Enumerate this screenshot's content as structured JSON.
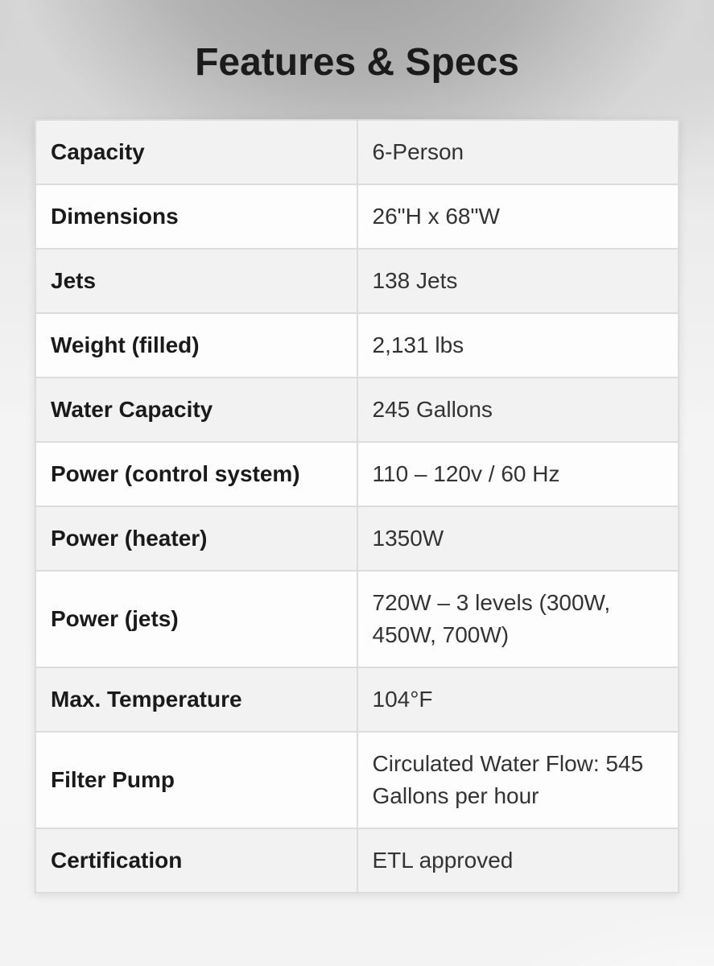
{
  "page": {
    "title": "Features & Specs"
  },
  "specs": {
    "rows": [
      {
        "label": "Capacity",
        "value": "6-Person"
      },
      {
        "label": "Dimensions",
        "value": "26\"H x 68\"W"
      },
      {
        "label": "Jets",
        "value": "138 Jets"
      },
      {
        "label": "Weight (filled)",
        "value": "2,131 lbs"
      },
      {
        "label": "Water Capacity",
        "value": "245 Gallons"
      },
      {
        "label": "Power (control system)",
        "value": "110 – 120v / 60 Hz"
      },
      {
        "label": "Power (heater)",
        "value": "1350W"
      },
      {
        "label": "Power (jets)",
        "value": "720W – 3 levels (300W, 450W, 700W)"
      },
      {
        "label": "Max. Temperature",
        "value": "104°F"
      },
      {
        "label": "Filter Pump",
        "value": "Circulated Water Flow: 545 Gallons per hour"
      },
      {
        "label": "Certification",
        "value": "ETL approved"
      }
    ]
  },
  "colors": {
    "row_alt_bg": "#f2f2f2",
    "row_bg": "#fdfdfd",
    "border": "#dcdcdc",
    "label_text": "#1a1a1a",
    "value_text": "#333333",
    "title_text": "#1b1b1b",
    "bg_top": "#9d9d9d",
    "bg_bottom": "#f3f3f3"
  }
}
